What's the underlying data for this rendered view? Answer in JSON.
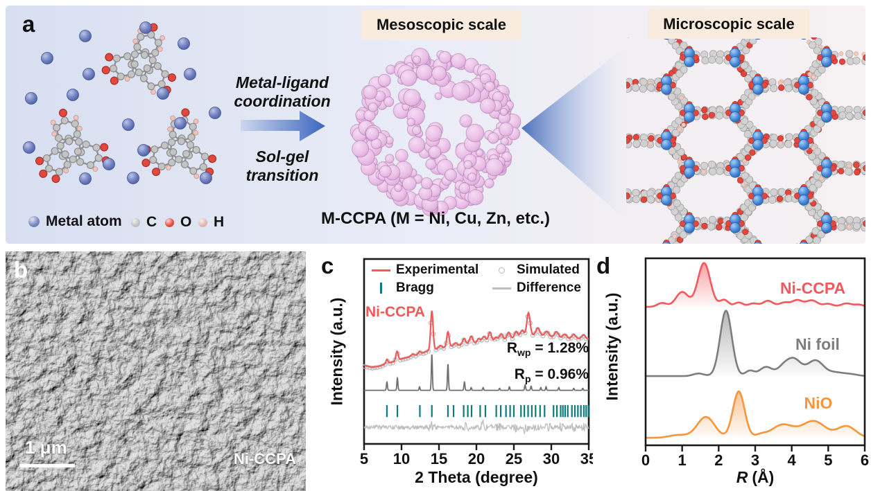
{
  "panel_a": {
    "label": "a",
    "process_arrow": {
      "top_line1": "Metal-ligand",
      "top_line2": "coordination",
      "bottom_line1": "Sol-gel",
      "bottom_line2": "transition"
    },
    "mesoscopic_header": "Mesoscopic scale",
    "microscopic_header": "Microscopic scale",
    "caption": "M-CCPA (M = Ni, Cu, Zn, etc.)",
    "atom_legend": [
      {
        "label": "Metal atom",
        "color": "#7282c0"
      },
      {
        "label": "C",
        "color": "#bfbfbf"
      },
      {
        "label": "O",
        "color": "#e4473e"
      },
      {
        "label": "H",
        "color": "#e0b3ad"
      }
    ],
    "aggregate_color": "#eac6e9",
    "arrow_color": "#3c67be"
  },
  "panel_b": {
    "label": "b",
    "scale_bar_text": "1 μm",
    "sample_label": "Ni-CCPA"
  },
  "panel_c": {
    "label": "c"
  },
  "panel_d": {
    "label": "d"
  },
  "chart_data": [
    {
      "id": "xrd-rietveld",
      "type": "line",
      "sample_label": "Ni-CCPA",
      "sample_label_color": "#f25858",
      "xlabel": "2 Theta (degree)",
      "ylabel": "Intensity (a.u.)",
      "xlim": [
        5,
        35
      ],
      "xticks": [
        5,
        10,
        15,
        20,
        25,
        30,
        35
      ],
      "legend": [
        {
          "label": "Experimental",
          "marker": "line",
          "color": "#f25858"
        },
        {
          "label": "Simulated",
          "marker": "circle",
          "color": "#b8b8b8"
        },
        {
          "label": "Bragg",
          "marker": "tick",
          "color": "#0e7a7d"
        },
        {
          "label": "Difference",
          "marker": "line",
          "color": "#bdbdbd"
        }
      ],
      "fit_stats": [
        {
          "symbol": "R",
          "subscript": "wp",
          "eq": "=",
          "value": "1.28%"
        },
        {
          "symbol": "R",
          "subscript": "p",
          "eq": "=",
          "value": "0.96%"
        }
      ],
      "experimental": {
        "color": "#f25858",
        "background": [
          [
            5,
            42.5
          ],
          [
            6,
            41.5
          ],
          [
            7,
            42
          ],
          [
            8,
            43.5
          ],
          [
            9,
            44.5
          ],
          [
            10,
            46
          ],
          [
            11,
            47
          ],
          [
            12,
            48
          ],
          [
            13,
            49.5
          ],
          [
            14,
            51
          ],
          [
            15,
            51.5
          ],
          [
            16,
            52.5
          ],
          [
            17,
            53
          ],
          [
            18,
            53.5
          ],
          [
            19,
            54
          ],
          [
            20,
            54.5
          ],
          [
            21,
            55
          ],
          [
            22,
            55.5
          ],
          [
            23,
            56
          ],
          [
            24,
            56.5
          ],
          [
            25,
            57
          ],
          [
            26,
            57.5
          ],
          [
            27,
            58.5
          ],
          [
            28,
            59
          ],
          [
            29,
            58.5
          ],
          [
            30,
            58
          ],
          [
            31,
            57.5
          ],
          [
            32,
            57
          ],
          [
            33,
            57
          ],
          [
            34,
            56.8
          ],
          [
            35,
            56.5
          ]
        ],
        "peaks": [
          [
            8.05,
            2.2,
            0.12
          ],
          [
            9.4,
            5,
            0.15
          ],
          [
            11.5,
            1,
            0.2
          ],
          [
            12.4,
            1.5,
            0.15
          ],
          [
            14.05,
            21,
            0.16
          ],
          [
            15.15,
            1.5,
            0.2
          ],
          [
            16.2,
            8,
            0.16
          ],
          [
            17.2,
            1.5,
            0.2
          ],
          [
            18.35,
            3.2,
            0.2
          ],
          [
            19.3,
            4,
            0.22
          ],
          [
            20.3,
            2.2,
            0.2
          ],
          [
            21,
            3,
            0.25
          ],
          [
            21.8,
            5,
            0.2
          ],
          [
            22.6,
            1.9,
            0.2
          ],
          [
            23.3,
            3.4,
            0.22
          ],
          [
            24.3,
            3.7,
            0.22
          ],
          [
            25.3,
            3.7,
            0.22
          ],
          [
            26.1,
            3.7,
            0.25
          ],
          [
            26.95,
            12.5,
            0.22
          ],
          [
            28.2,
            3.7,
            0.25
          ],
          [
            29.4,
            2.6,
            0.25
          ],
          [
            30.7,
            3,
            0.25
          ],
          [
            31.8,
            2.2,
            0.25
          ],
          [
            33,
            2.2,
            0.25
          ],
          [
            34.3,
            2.2,
            0.25
          ]
        ]
      },
      "simulated": {
        "color": "#b8b8b8",
        "step": 0.34
      },
      "calculated": {
        "color": "#6f6f6f",
        "baseline": 29,
        "peaks": [
          [
            8.05,
            4.5,
            0.07
          ],
          [
            9.45,
            6.7,
            0.07
          ],
          [
            12.4,
            1.9,
            0.06
          ],
          [
            14.05,
            19.5,
            0.07
          ],
          [
            16.2,
            14.2,
            0.07
          ],
          [
            18.4,
            4.5,
            0.07
          ],
          [
            19.3,
            1.5,
            0.06
          ],
          [
            20.9,
            1.5,
            0.06
          ],
          [
            23.1,
            1.1,
            0.06
          ],
          [
            24.4,
            1.9,
            0.06
          ],
          [
            26.5,
            3,
            0.07
          ],
          [
            27.3,
            2.2,
            0.07
          ],
          [
            28.6,
            1.5,
            0.06
          ],
          [
            29.3,
            1.9,
            0.06
          ],
          [
            31,
            1.5,
            0.06
          ],
          [
            33,
            1.1,
            0.06
          ],
          [
            34.2,
            1.1,
            0.06
          ]
        ]
      },
      "bragg": {
        "color": "#0e7a7d",
        "y": [
          14.5,
          21
        ],
        "positions": [
          8.05,
          9.45,
          12.45,
          14.05,
          16.2,
          16.95,
          18.3,
          18.85,
          19.35,
          20.5,
          21.2,
          22.65,
          23.25,
          23.95,
          24.5,
          25,
          25.95,
          26.4,
          26.9,
          27.4,
          27.9,
          28.5,
          29.1,
          30.3,
          30.75,
          31.25,
          31.55,
          31.85,
          32.2,
          32.75,
          33.15,
          33.55,
          33.95,
          34.35,
          34.65,
          34.95
        ]
      },
      "difference": {
        "color": "#bdbdbd",
        "baseline": 9,
        "amp": 1.1,
        "bursts": [
          [
            14,
            2.5
          ],
          [
            18.6,
            1.8
          ],
          [
            20.9,
            3.5
          ],
          [
            21.7,
            2.2
          ],
          [
            23,
            1.8
          ],
          [
            25.2,
            1.8
          ],
          [
            26.6,
            3
          ],
          [
            28,
            1.8
          ],
          [
            29.6,
            1.8
          ],
          [
            31.2,
            2.2
          ],
          [
            33,
            1.8
          ],
          [
            34.3,
            1.4
          ]
        ]
      }
    },
    {
      "id": "exafs",
      "type": "line",
      "xlabel_symbol": "R",
      "xlabel_unit": "(Å)",
      "ylabel": "Intensity (a.u.)",
      "xlim": [
        0,
        6
      ],
      "xticks": [
        0,
        1,
        2,
        3,
        4,
        5,
        6
      ],
      "series": [
        {
          "name": "Ni-CCPA",
          "color": "#f4575c",
          "baseline": 74,
          "amplitude": 23.5,
          "peaks": [
            [
              0.45,
              0.09,
              0.13
            ],
            [
              1,
              0.34,
              0.17
            ],
            [
              1.6,
              1,
              0.17
            ],
            [
              2.15,
              0.16,
              0.12
            ],
            [
              2.55,
              0.1,
              0.12
            ],
            [
              2.95,
              0.08,
              0.13
            ],
            [
              3.35,
              0.14,
              0.14
            ],
            [
              3.8,
              0.1,
              0.14
            ],
            [
              4.15,
              0.15,
              0.14
            ],
            [
              4.55,
              0.15,
              0.16
            ],
            [
              5,
              0.07,
              0.13
            ],
            [
              5.5,
              0.08,
              0.15
            ],
            [
              5.85,
              0.05,
              0.12
            ]
          ]
        },
        {
          "name": "Ni foil",
          "color": "#7d7d7d",
          "baseline": 37,
          "amplitude": 35,
          "peaks": [
            [
              1.45,
              0.04,
              0.15
            ],
            [
              2.2,
              1,
              0.16
            ],
            [
              2.85,
              0.08,
              0.12
            ],
            [
              3.3,
              0.14,
              0.18
            ],
            [
              3.75,
              0.1,
              0.15
            ],
            [
              4.05,
              0.26,
              0.2
            ],
            [
              4.65,
              0.24,
              0.22
            ],
            [
              5.2,
              0.05,
              0.2
            ],
            [
              5.6,
              0.03,
              0.2
            ]
          ]
        },
        {
          "name": "NiO",
          "color": "#f5953c",
          "baseline": 4,
          "amplitude": 24.8,
          "peaks": [
            [
              0.9,
              0.06,
              0.25
            ],
            [
              1.65,
              0.45,
              0.24
            ],
            [
              2.55,
              1,
              0.16
            ],
            [
              3.15,
              0.06,
              0.15
            ],
            [
              3.75,
              0.28,
              0.3
            ],
            [
              4.6,
              0.36,
              0.32
            ],
            [
              5.5,
              0.25,
              0.25
            ]
          ]
        }
      ]
    }
  ]
}
